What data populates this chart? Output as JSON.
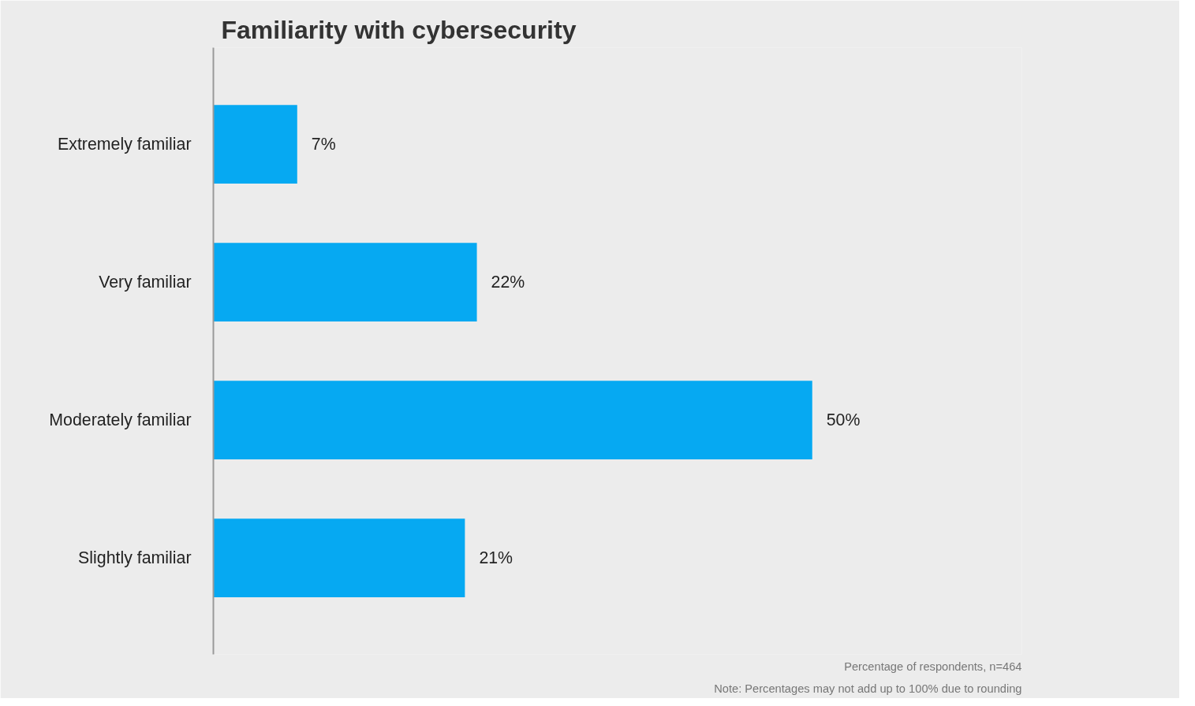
{
  "chart_data": {
    "type": "bar",
    "orientation": "horizontal",
    "title": "Familiarity with cybersecurity",
    "categories": [
      "Extremely familiar",
      "Very familiar",
      "Moderately familiar",
      "Slightly familiar"
    ],
    "values": [
      7,
      22,
      50,
      21
    ],
    "color": "#06a9f2",
    "value_labels": [
      "7%",
      "22%",
      "50%",
      "21%"
    ],
    "grid": false,
    "annotations": [
      "Percentage of respondents, n=464",
      "Note: Percentages may not add up to 100% due to rounding"
    ]
  }
}
